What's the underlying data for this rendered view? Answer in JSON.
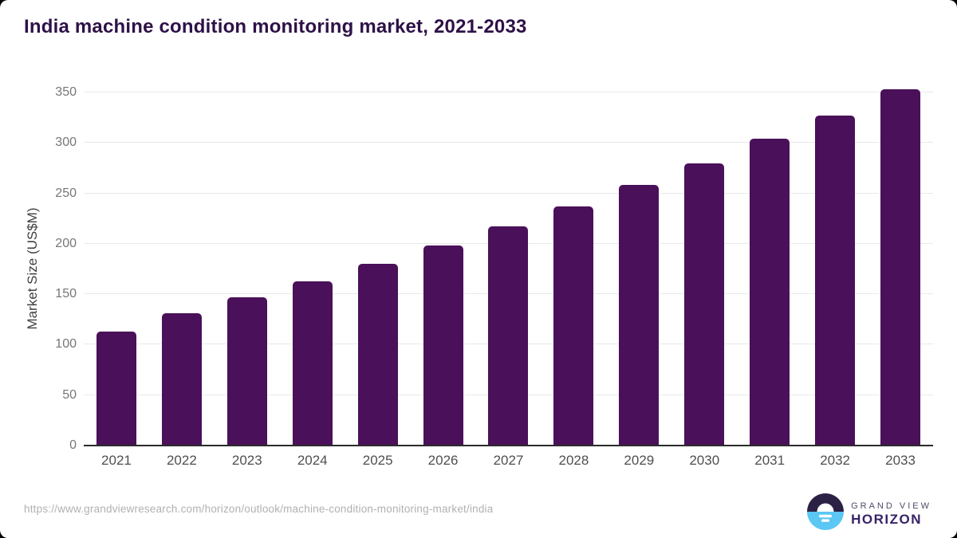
{
  "title": "India machine condition monitoring market, 2021-2033",
  "source_url": "https://www.grandviewresearch.com/horizon/outlook/machine-condition-monitoring-market/india",
  "logo": {
    "line1": "GRAND VIEW",
    "line2": "HORIZON"
  },
  "colors": {
    "bar": "#4a1059",
    "title": "#2e1147",
    "gridline": "#e9e9e9",
    "axis_line": "#2b2b2b",
    "y_tick": "#767676",
    "x_tick": "#4f4f4f",
    "url_text": "#b1b1b1",
    "logo_dark": "#2b2144",
    "logo_blue": "#5bc7f3"
  },
  "chart_data": {
    "type": "bar",
    "title": "India machine condition monitoring market, 2021-2033",
    "categories": [
      "2021",
      "2022",
      "2023",
      "2024",
      "2025",
      "2026",
      "2027",
      "2028",
      "2029",
      "2030",
      "2031",
      "2032",
      "2033"
    ],
    "values": [
      113,
      131,
      147,
      163,
      180,
      198,
      217,
      237,
      258,
      280,
      304,
      327,
      353
    ],
    "xlabel": "",
    "ylabel": "Market Size (US$M)",
    "ylim": [
      0,
      350
    ],
    "yticks": [
      0,
      50,
      100,
      150,
      200,
      250,
      300,
      350
    ],
    "grid": true,
    "legend": false
  }
}
